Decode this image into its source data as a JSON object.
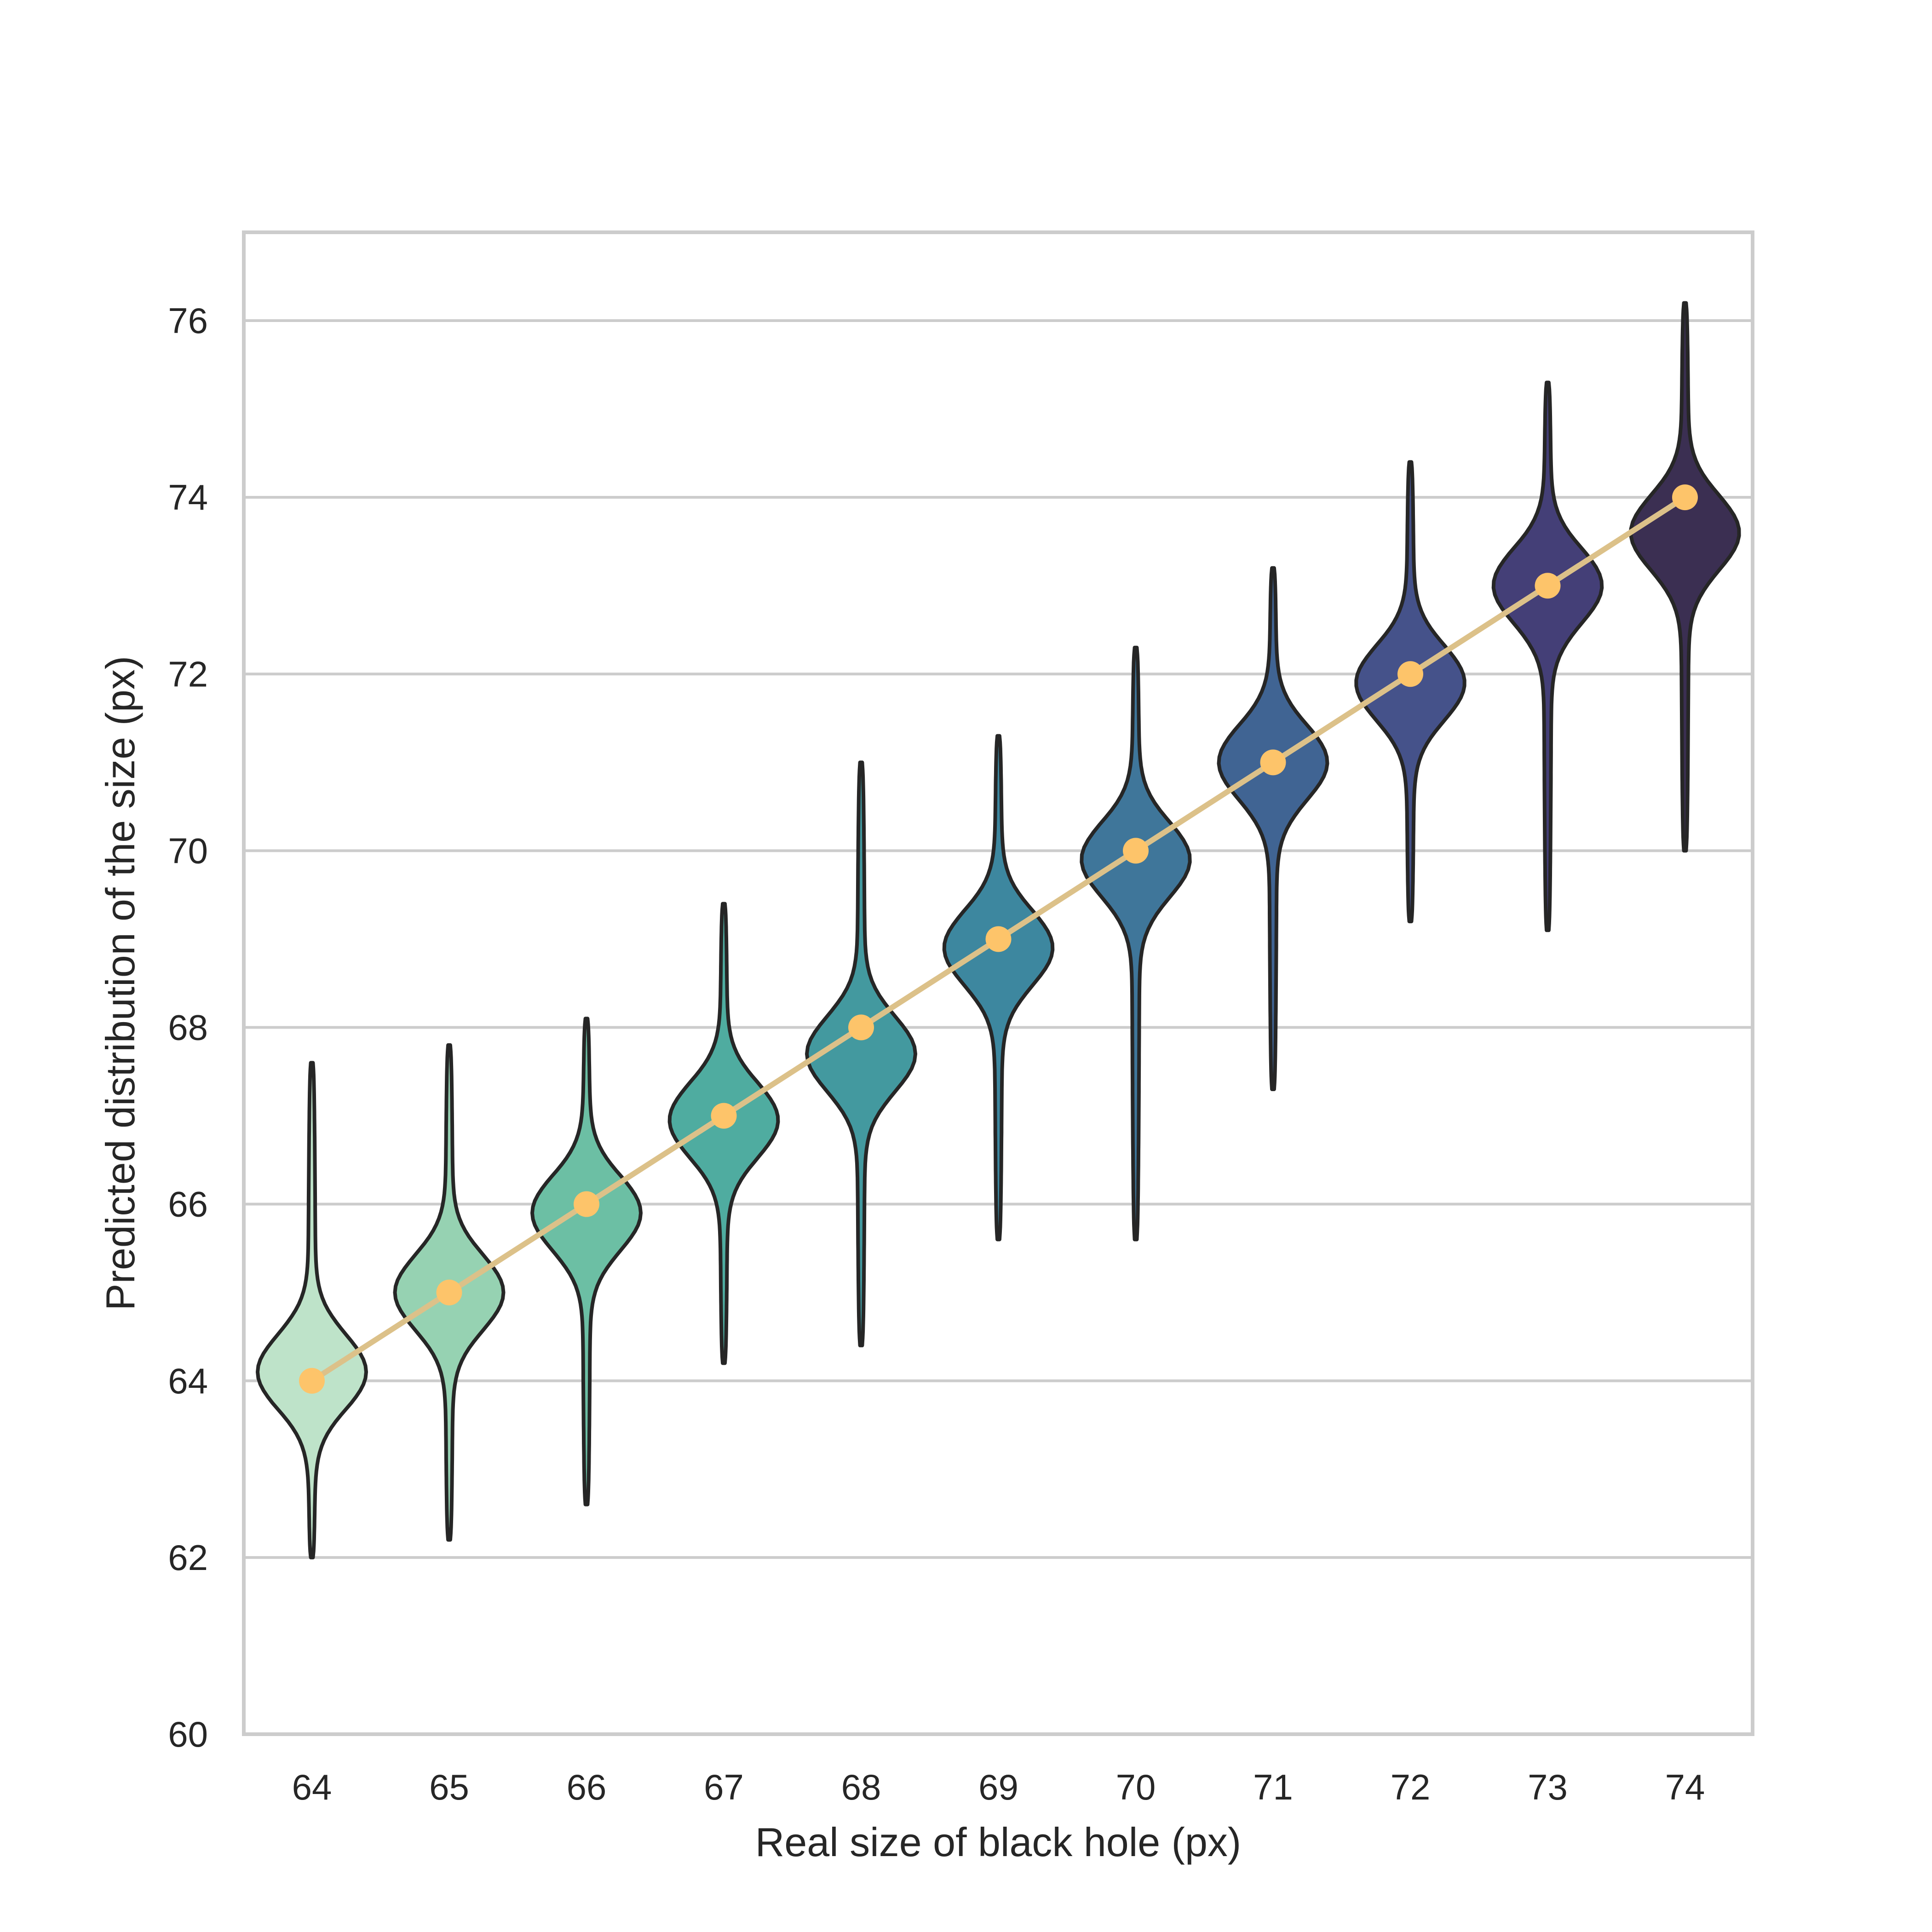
{
  "chart_data": {
    "type": "violin",
    "title": "",
    "xlabel": "Real size of black hole (px)",
    "ylabel": "Predicted distribution of the size (px)",
    "ylim": [
      60,
      77
    ],
    "yticks": [
      60,
      62,
      64,
      66,
      68,
      70,
      72,
      74,
      76
    ],
    "categories": [
      "64",
      "65",
      "66",
      "67",
      "68",
      "69",
      "70",
      "71",
      "72",
      "73",
      "74"
    ],
    "grid": "horizontal",
    "violins": [
      {
        "x": 64,
        "min": 62.0,
        "max": 67.6,
        "median": 64.1,
        "fill": "#bee3c9"
      },
      {
        "x": 65,
        "min": 62.2,
        "max": 67.8,
        "median": 65.0,
        "fill": "#96d2b2"
      },
      {
        "x": 66,
        "min": 62.6,
        "max": 68.1,
        "median": 65.9,
        "fill": "#6cbfa4"
      },
      {
        "x": 67,
        "min": 64.2,
        "max": 69.4,
        "median": 66.95,
        "fill": "#4faca0"
      },
      {
        "x": 68,
        "min": 64.4,
        "max": 71.0,
        "median": 67.7,
        "fill": "#43999f"
      },
      {
        "x": 69,
        "min": 65.6,
        "max": 71.3,
        "median": 68.9,
        "fill": "#3d879f"
      },
      {
        "x": 70,
        "min": 65.6,
        "max": 72.3,
        "median": 69.9,
        "fill": "#3f769a"
      },
      {
        "x": 71,
        "min": 67.3,
        "max": 73.2,
        "median": 71.0,
        "fill": "#406493"
      },
      {
        "x": 72,
        "min": 69.2,
        "max": 74.4,
        "median": 71.9,
        "fill": "#45528a"
      },
      {
        "x": 73,
        "min": 69.1,
        "max": 75.3,
        "median": 73.0,
        "fill": "#443f77"
      },
      {
        "x": 74,
        "min": 70.0,
        "max": 76.2,
        "median": 73.6,
        "fill": "#3b2f52"
      }
    ],
    "line_series": {
      "x": [
        64,
        65,
        66,
        67,
        68,
        69,
        70,
        71,
        72,
        73,
        74
      ],
      "y": [
        64,
        65,
        66,
        67,
        68,
        69,
        70,
        71,
        72,
        73,
        74
      ],
      "line_color": "#dcc189",
      "marker_color": "#fdc46a"
    }
  }
}
